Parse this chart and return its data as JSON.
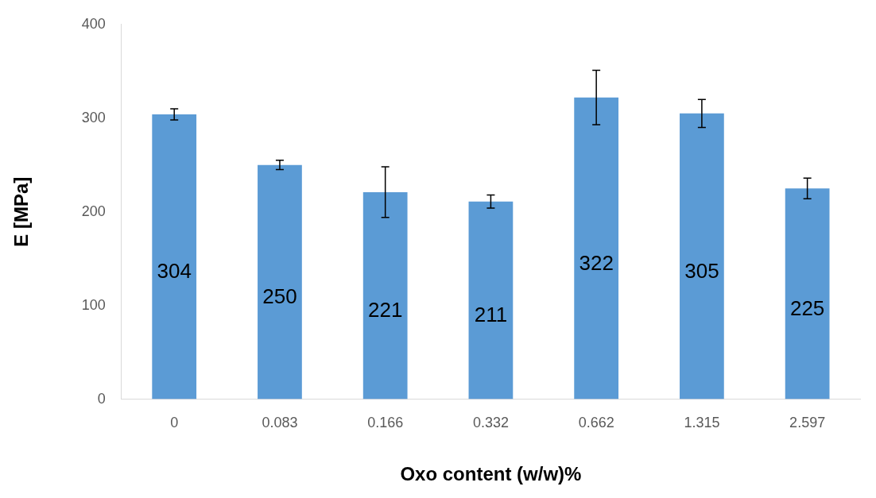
{
  "chart_data": {
    "type": "bar",
    "xlabel": "Oxo content (w/w)%",
    "ylabel": "E [MPa]",
    "categories": [
      "0",
      "0.083",
      "0.166",
      "0.332",
      "0.662",
      "1.315",
      "2.597"
    ],
    "values": [
      304,
      250,
      221,
      211,
      322,
      305,
      225
    ],
    "errors": [
      6,
      5,
      27,
      7,
      29,
      15,
      11
    ],
    "color": "#5b9bd5",
    "data_labels": true,
    "ylim": [
      0,
      400
    ],
    "yticks": [
      0,
      100,
      200,
      300,
      400
    ],
    "grid": false,
    "legend": false
  }
}
